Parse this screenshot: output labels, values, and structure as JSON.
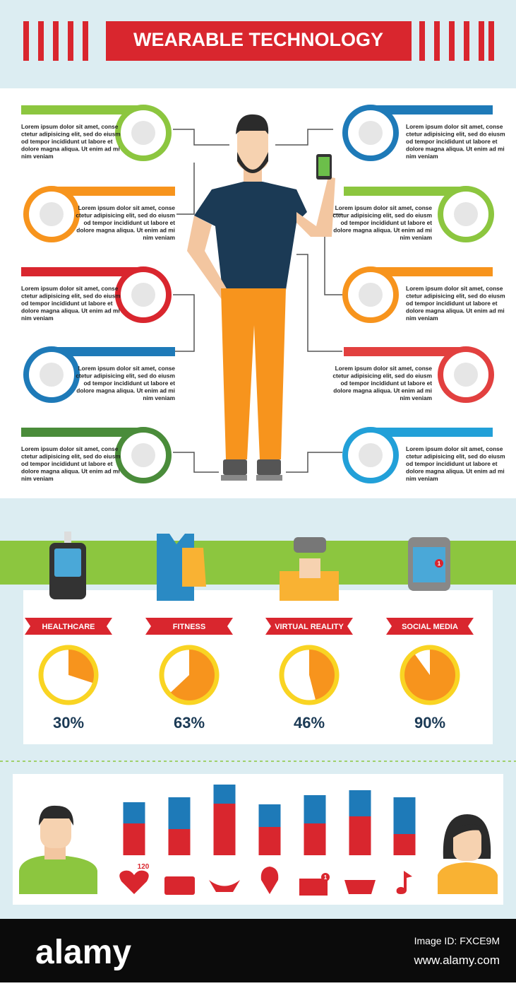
{
  "header": {
    "title": "WEARABLE TECHNOLOGY"
  },
  "devices": {
    "items": [
      {
        "color": "#8cc63f",
        "lines": [
          "Lorem ipsum dolor sit amet, conse",
          "ctetur adipisicing elit, sed do eiusm",
          "od tempor incididunt ut labore et",
          "dolore magna aliqua. Ut enim ad mi",
          "nim veniam"
        ]
      },
      {
        "color": "#f7941d",
        "lines": [
          "Lorem ipsum dolor sit amet, conse",
          "ctetur adipisicing elit, sed do eiusm",
          "od tempor incididunt ut labore et",
          "dolore magna aliqua. Ut enim ad mi",
          "nim veniam"
        ]
      },
      {
        "color": "#d9262e",
        "lines": [
          "Lorem ipsum dolor sit amet, conse",
          "ctetur adipisicing elit, sed do eiusm",
          "od tempor incididunt ut labore et",
          "dolore magna aliqua. Ut enim ad mi",
          "nim veniam"
        ]
      },
      {
        "color": "#1e7ab8",
        "lines": [
          "Lorem ipsum dolor sit amet, conse",
          "ctetur adipisicing elit, sed do eiusm",
          "od tempor incididunt ut labore et",
          "dolore magna aliqua. Ut enim ad mi",
          "nim veniam"
        ]
      },
      {
        "color": "#4a8c3a",
        "lines": [
          "Lorem ipsum dolor sit amet, conse",
          "ctetur adipisicing elit, sed do eiusm",
          "od tempor incididunt ut labore et",
          "dolore magna aliqua. Ut enim ad mi",
          "nim veniam"
        ]
      },
      {
        "color": "#1e7ab8",
        "lines": [
          "Lorem ipsum dolor sit amet, conse",
          "ctetur adipisicing elit, sed do eiusm",
          "od tempor incididunt ut labore et",
          "dolore magna aliqua. Ut enim ad mi",
          "nim veniam"
        ]
      },
      {
        "color": "#8cc63f",
        "lines": [
          "Lorem ipsum dolor sit amet, conse",
          "ctetur adipisicing elit, sed do eiusm",
          "od tempor incididunt ut labore et",
          "dolore magna aliqua. Ut enim ad mi",
          "nim veniam"
        ]
      },
      {
        "color": "#f7941d",
        "lines": [
          "Lorem ipsum dolor sit amet, conse",
          "ctetur adipisicing elit, sed do eiusm",
          "od tempor incididunt ut labore et",
          "dolore magna aliqua. Ut enim ad mi",
          "nim veniam"
        ]
      },
      {
        "color": "#e2403f",
        "lines": [
          "Lorem ipsum dolor sit amet, conse",
          "ctetur adipisicing elit, sed do eiusm",
          "od tempor incididunt ut labore et",
          "dolore magna aliqua. Ut enim ad mi",
          "nim veniam"
        ]
      },
      {
        "color": "#22a0d8",
        "lines": [
          "Lorem ipsum dolor sit amet, conse",
          "ctetur adipisicing elit, sed do eiusm",
          "od tempor incididunt ut labore et",
          "dolore magna aliqua. Ut enim ad mi",
          "nim veniam"
        ]
      }
    ]
  },
  "usage": {
    "categories": [
      "HEALTHCARE",
      "FITNESS",
      "VIRTUAL REALITY",
      "SOCIAL MEDIA"
    ],
    "values": [
      30,
      63,
      46,
      90
    ],
    "value_labels": [
      "30%",
      "63%",
      "46%",
      "90%"
    ],
    "ring_color": "#f9d423",
    "wedge_color": "#f7941d"
  },
  "activity": {
    "series": [
      {
        "color": "#d9262e",
        "values": [
          45,
          37,
          73,
          40,
          45,
          55,
          30
        ]
      },
      {
        "color": "#1e7ab8",
        "values": [
          30,
          45,
          27,
          32,
          40,
          37,
          52
        ]
      }
    ],
    "heart_rate": "120",
    "message_badge": "1"
  },
  "social_badge": "1",
  "footer": {
    "brand": "alamy",
    "image_id": "Image ID: FXCE9M",
    "url": "www.alamy.com"
  }
}
